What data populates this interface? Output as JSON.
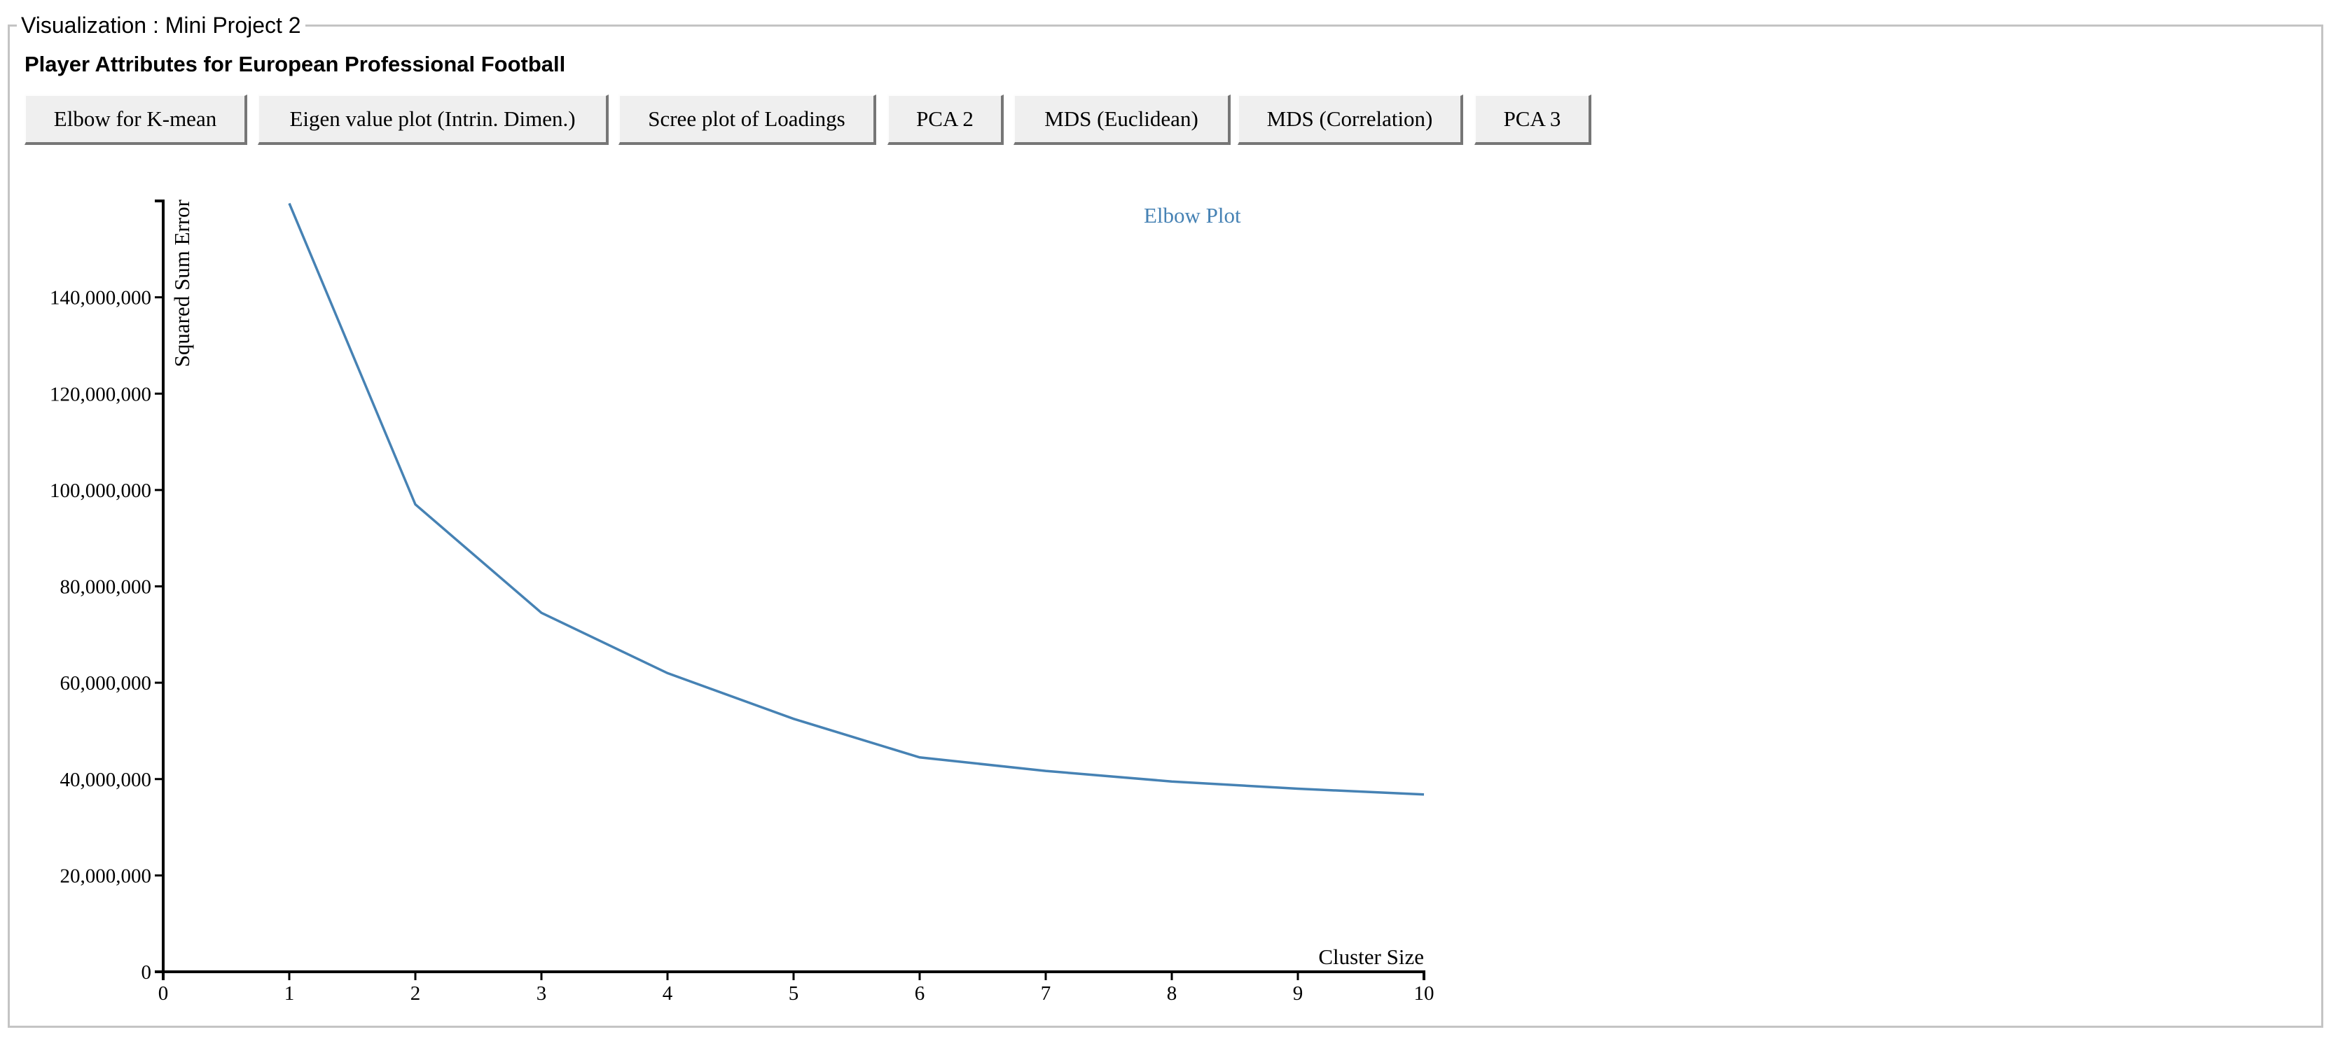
{
  "panel": {
    "legend": "Visualization : Mini Project 2"
  },
  "page_title": "Player Attributes for European Professional Football",
  "buttons": [
    {
      "id": "elbow",
      "label": "Elbow for K-mean"
    },
    {
      "id": "eigen",
      "label": "Eigen value plot (Intrin. Dimen.)"
    },
    {
      "id": "scree",
      "label": "Scree plot of Loadings"
    },
    {
      "id": "pca2",
      "label": "PCA 2"
    },
    {
      "id": "mds-euclid",
      "label": "MDS (Euclidean)"
    },
    {
      "id": "mds-corr",
      "label": "MDS (Correlation)"
    },
    {
      "id": "pca3",
      "label": "PCA 3"
    }
  ],
  "chart_data": {
    "type": "line",
    "title": "Elbow Plot",
    "xlabel": "Cluster Size",
    "ylabel": "Squared Sum Error",
    "xlim": [
      0,
      10
    ],
    "ylim": [
      0,
      160000000
    ],
    "x_ticks": [
      0,
      1,
      2,
      3,
      4,
      5,
      6,
      7,
      8,
      9,
      10
    ],
    "y_ticks": [
      0,
      20000000,
      40000000,
      60000000,
      80000000,
      100000000,
      120000000,
      140000000
    ],
    "grid": false,
    "series": [
      {
        "x": [
          1,
          2,
          3,
          4,
          5,
          6,
          7,
          8,
          9,
          10
        ],
        "values": [
          159500000,
          97000000,
          74500000,
          62000000,
          52500000,
          44500000,
          41700000,
          39500000,
          38000000,
          36800000
        ]
      }
    ],
    "colors": {
      "line": "#4682b4",
      "title": "#4682b4",
      "axis": "#000000"
    }
  }
}
